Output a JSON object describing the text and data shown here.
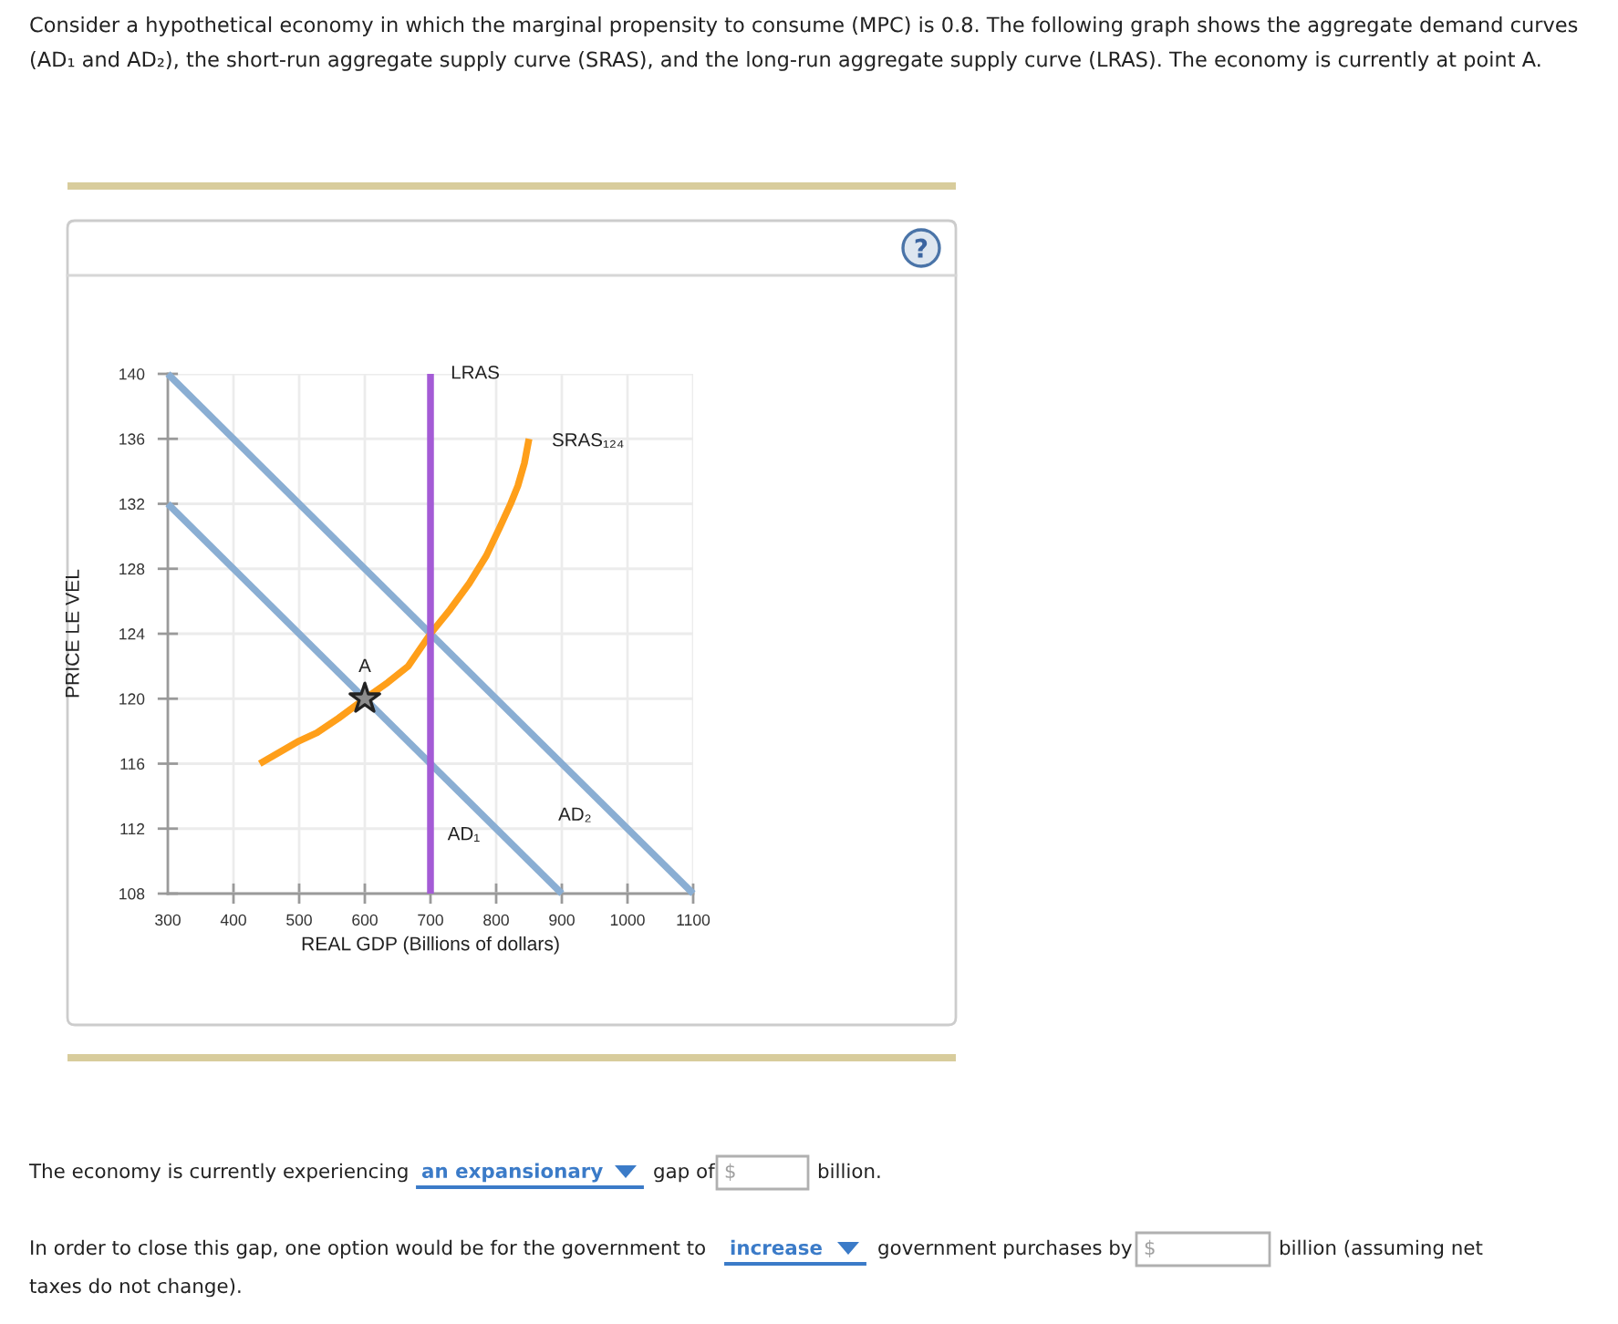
{
  "chart_data": {
    "type": "line",
    "title": "Consider a hypothetical economy in which the marginal propensity to consume (MPC) is 0.8. The following graph shows the aggregate demand curves (AD₁ and AD₂), the short-run aggregate supply curve (SRAS), and the long-run aggregate supply curve (LRAS). The economy is currently at point A.",
    "xlabel": "REAL GDP (Billions of dollars)",
    "ylabel": "PRICE LE VEL",
    "xlim": [
      300,
      1100
    ],
    "ylim": [
      108,
      140
    ],
    "xticks": [
      300,
      400,
      500,
      600,
      700,
      800,
      900,
      1000,
      1100
    ],
    "yticks": [
      108,
      112,
      116,
      120,
      124,
      128,
      132,
      136,
      140
    ],
    "grid": true,
    "series": [
      {
        "name": "AD₁",
        "color": "#8aaed3",
        "x": [
          300,
          900
        ],
        "values": [
          132,
          108
        ]
      },
      {
        "name": "AD₂",
        "color": "#8aaed3",
        "x": [
          300,
          1100
        ],
        "values": [
          140,
          108
        ]
      },
      {
        "name": "SRAS₁₂₄",
        "color": "#ff9f1a",
        "x": [
          440,
          470,
          500,
          527,
          560,
          600,
          635,
          666,
          700,
          730,
          759,
          785,
          805,
          822,
          833,
          843,
          850
        ],
        "values": [
          116,
          116.7,
          117.4,
          117.9,
          118.8,
          120,
          121,
          122,
          124,
          125.5,
          127.1,
          128.8,
          130.5,
          132,
          133.1,
          134.5,
          136
        ]
      },
      {
        "name": "LRAS",
        "color": "#a45bd6",
        "x": [
          700,
          700
        ],
        "values": [
          108,
          140
        ]
      },
      {
        "type": "scatter",
        "color": "#8c8c8c",
        "marker": "star",
        "x": [
          600
        ],
        "values": [
          120
        ]
      }
    ],
    "annotations": [
      "The economy is currently experiencing",
      "an expansionary",
      "gap of",
      "$",
      "billion.",
      "In order to close this gap, one option would be for the government to",
      "increase",
      "government purchases by",
      "$",
      "billion (assuming net",
      "taxes do not change).",
      {
        "text": "A",
        "x": 600,
        "y": 120
      }
    ]
  }
}
